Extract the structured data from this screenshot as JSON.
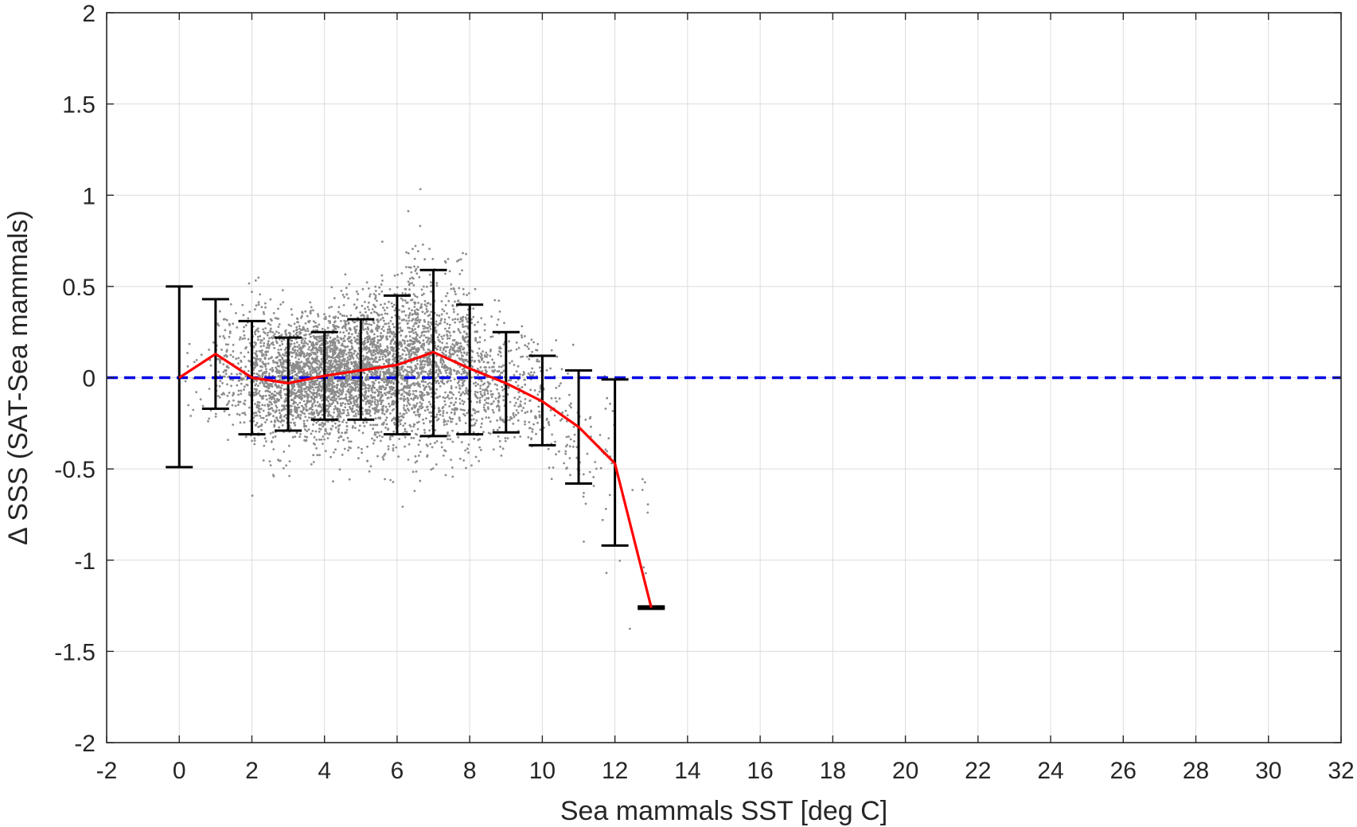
{
  "chart_data": {
    "type": "scatter",
    "title": "",
    "xlabel": "Sea mammals SST [deg C]",
    "ylabel": "Δ SSS (SAT-Sea mammals)",
    "xlim": [
      -2,
      32
    ],
    "ylim": [
      -2,
      2
    ],
    "xticks": [
      -2,
      0,
      2,
      4,
      6,
      8,
      10,
      12,
      14,
      16,
      18,
      20,
      22,
      24,
      26,
      28,
      30,
      32
    ],
    "yticks": [
      -2,
      -1.5,
      -1,
      -0.5,
      0,
      0.5,
      1,
      1.5,
      2
    ],
    "xtick_labels": [
      "-2",
      "0",
      "2",
      "4",
      "6",
      "8",
      "10",
      "12",
      "14",
      "16",
      "18",
      "20",
      "22",
      "24",
      "26",
      "28",
      "30",
      "32"
    ],
    "ytick_labels": [
      "-2",
      "-1.5",
      "-1",
      "-0.5",
      "0",
      "0.5",
      "1",
      "1.5",
      "2"
    ],
    "grid": true,
    "series": [
      {
        "type": "line",
        "color": "#ff0000",
        "x": [
          0,
          1,
          2,
          3,
          4,
          5,
          6,
          7,
          8,
          9,
          10,
          11,
          12,
          13
        ],
        "y": [
          0.0,
          0.13,
          0.0,
          -0.03,
          0.01,
          0.04,
          0.07,
          0.14,
          0.05,
          -0.03,
          -0.13,
          -0.27,
          -0.47,
          -1.26
        ]
      },
      {
        "type": "errorbar",
        "color": "#000000",
        "x": [
          0,
          1,
          2,
          3,
          4,
          5,
          6,
          7,
          8,
          9,
          10,
          11,
          12,
          13
        ],
        "lower": [
          -0.49,
          -0.17,
          -0.31,
          -0.29,
          -0.23,
          -0.23,
          -0.31,
          -0.32,
          -0.31,
          -0.3,
          -0.37,
          -0.58,
          -0.92,
          -1.26
        ],
        "upper": [
          0.5,
          0.43,
          0.31,
          0.22,
          0.25,
          0.32,
          0.45,
          0.59,
          0.4,
          0.25,
          0.12,
          0.04,
          -0.01,
          -1.26
        ]
      },
      {
        "type": "reference-line",
        "style": "dashed",
        "color": "#0000e6",
        "y": 0
      },
      {
        "type": "scatter",
        "color": "#8c8c8c",
        "note_count": 5200,
        "bins": [
          {
            "x": 0.5,
            "mean": 0.0,
            "spread": 0.25,
            "n": 25
          },
          {
            "x": 1.5,
            "mean": 0.05,
            "spread": 0.27,
            "n": 180
          },
          {
            "x": 2.5,
            "mean": -0.02,
            "spread": 0.3,
            "n": 550
          },
          {
            "x": 3.5,
            "mean": 0.0,
            "spread": 0.27,
            "n": 850
          },
          {
            "x": 4.5,
            "mean": 0.02,
            "spread": 0.29,
            "n": 950
          },
          {
            "x": 5.5,
            "mean": 0.04,
            "spread": 0.33,
            "n": 850
          },
          {
            "x": 6.5,
            "mean": 0.08,
            "spread": 0.42,
            "n": 750
          },
          {
            "x": 7.5,
            "mean": 0.07,
            "spread": 0.37,
            "n": 500
          },
          {
            "x": 8.5,
            "mean": -0.02,
            "spread": 0.3,
            "n": 280
          },
          {
            "x": 9.5,
            "mean": -0.08,
            "spread": 0.27,
            "n": 150
          },
          {
            "x": 10.5,
            "mean": -0.2,
            "spread": 0.3,
            "n": 70
          },
          {
            "x": 11.5,
            "mean": -0.4,
            "spread": 0.38,
            "n": 40
          },
          {
            "x": 12.5,
            "mean": -0.9,
            "spread": 0.3,
            "n": 10
          }
        ]
      }
    ],
    "colors": {
      "scatter": "#8c8c8c",
      "mean_line": "#ff0000",
      "errorbars": "#000000",
      "zero_line": "#0000e6",
      "grid": "#dcdcdc",
      "axes": "#262626"
    }
  }
}
